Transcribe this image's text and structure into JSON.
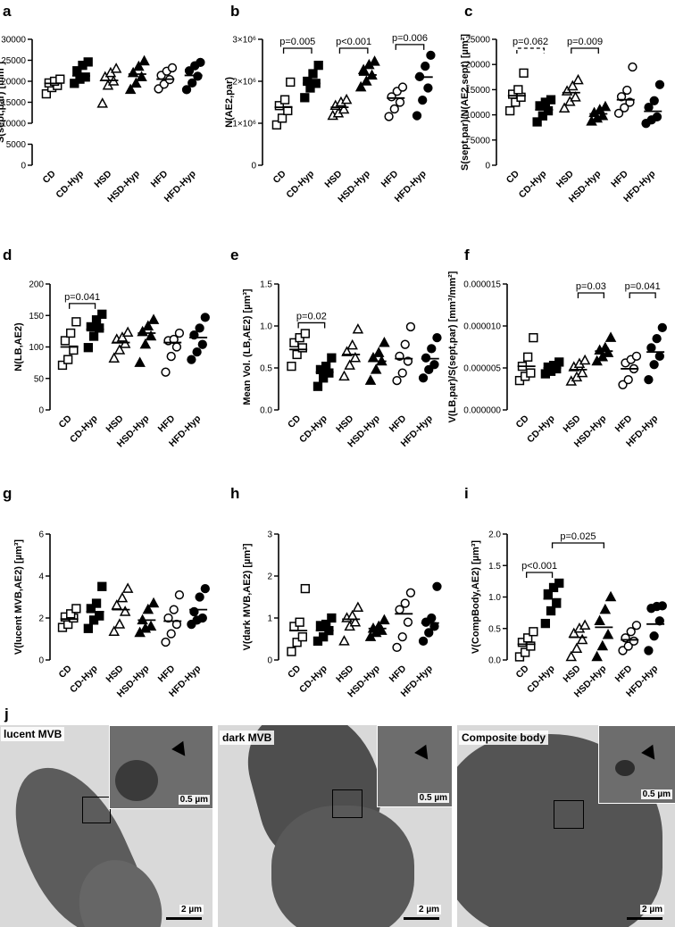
{
  "panel_letters": [
    "a",
    "b",
    "c",
    "d",
    "e",
    "f",
    "g",
    "h",
    "i",
    "j"
  ],
  "chart_data": [
    {
      "panel": "a",
      "type": "scatter",
      "ylabel": "S(sept,par) [mm²]",
      "categories": [
        "CD",
        "CD-Hyp",
        "HSD",
        "HSD-Hyp",
        "HFD",
        "HFD-Hyp"
      ],
      "yticks": [
        "0",
        "5000",
        "10000",
        "15000",
        "20000",
        "25000",
        "30000"
      ],
      "ylim": [
        0,
        30000
      ],
      "axis_break": [
        5000,
        10000
      ],
      "means": [
        19500,
        21300,
        20200,
        21700,
        20500,
        21400
      ],
      "values": [
        [
          17000,
          18500,
          19000,
          19600,
          20000,
          20500
        ],
        [
          19500,
          20500,
          21000,
          22500,
          23800,
          24600
        ],
        [
          14700,
          19000,
          20000,
          21000,
          22000,
          23000
        ],
        [
          18000,
          19500,
          21000,
          22000,
          23500,
          24800
        ],
        [
          18200,
          19300,
          20400,
          21400,
          22400,
          23200
        ],
        [
          18000,
          19600,
          21200,
          22500,
          23700,
          24500
        ]
      ],
      "comparisons": []
    },
    {
      "panel": "b",
      "type": "scatter",
      "ylabel": "N(AE2,par)",
      "categories": [
        "CD",
        "CD-Hyp",
        "HSD",
        "HSD-Hyp",
        "HFD",
        "HFD-Hyp"
      ],
      "yticks": [
        "0",
        "1×10⁶",
        "2×10⁶",
        "3×10⁶"
      ],
      "ylim": [
        0,
        3000000
      ],
      "means": [
        1380000,
        1950000,
        1380000,
        2150000,
        1600000,
        2100000
      ],
      "values": [
        [
          960000,
          1120000,
          1300000,
          1420000,
          1560000,
          1980000
        ],
        [
          1610000,
          1840000,
          1950000,
          2000000,
          2180000,
          2380000
        ],
        [
          1180000,
          1240000,
          1330000,
          1420000,
          1500000,
          1560000
        ],
        [
          1860000,
          2000000,
          2140000,
          2270000,
          2390000,
          2470000
        ],
        [
          1160000,
          1340000,
          1500000,
          1630000,
          1760000,
          1860000
        ],
        [
          1180000,
          1550000,
          1840000,
          2110000,
          2360000,
          2620000
        ]
      ],
      "comparisons": [
        {
          "from": 0,
          "to": 1,
          "label": "p=0.005",
          "dashed": false
        },
        {
          "from": 2,
          "to": 3,
          "label": "p<0.001",
          "dashed": false
        },
        {
          "from": 4,
          "to": 5,
          "label": "p=0.006",
          "dashed": false
        }
      ]
    },
    {
      "panel": "c",
      "type": "scatter",
      "ylabel": "S(sept,par)/N(AE2,sept) [µm²]",
      "categories": [
        "CD",
        "CD-Hyp",
        "HSD",
        "HSD-Hyp",
        "HFD",
        "HFD-Hyp"
      ],
      "yticks": [
        "0",
        "5000",
        "10000",
        "15000",
        "20000",
        "25000"
      ],
      "ylim": [
        0,
        25000
      ],
      "means": [
        13800,
        11000,
        14400,
        10200,
        13000,
        10700
      ],
      "values": [
        [
          10800,
          12500,
          13500,
          14100,
          15000,
          18300
        ],
        [
          8600,
          9800,
          10800,
          11800,
          12500,
          13000
        ],
        [
          11300,
          12600,
          13500,
          14700,
          15700,
          16900
        ],
        [
          8700,
          9300,
          9800,
          10400,
          11000,
          11600
        ],
        [
          10300,
          11400,
          12500,
          13600,
          14900,
          19500
        ],
        [
          8300,
          9000,
          9600,
          11500,
          12800,
          16000
        ]
      ],
      "comparisons": [
        {
          "from": 0,
          "to": 1,
          "label": "p=0.062",
          "dashed": true
        },
        {
          "from": 2,
          "to": 3,
          "label": "p=0.009",
          "dashed": false
        }
      ]
    },
    {
      "panel": "d",
      "type": "scatter",
      "ylabel": "N(LB,AE2)",
      "categories": [
        "CD",
        "CD-Hyp",
        "HSD",
        "HSD-Hyp",
        "HFD",
        "HFD-Hyp"
      ],
      "yticks": [
        "0",
        "50",
        "100",
        "150",
        "200"
      ],
      "ylim": [
        0,
        200
      ],
      "means": [
        100,
        128,
        107,
        122,
        107,
        115
      ],
      "values": [
        [
          71,
          80,
          95,
          110,
          122,
          140
        ],
        [
          99,
          117,
          130,
          132,
          143,
          152
        ],
        [
          82,
          95,
          105,
          112,
          115,
          123
        ],
        [
          75,
          104,
          117,
          124,
          133,
          143
        ],
        [
          60,
          85,
          100,
          110,
          112,
          122
        ],
        [
          80,
          92,
          104,
          119,
          130,
          147
        ]
      ],
      "comparisons": [
        {
          "from": 0,
          "to": 1,
          "label": "p=0.041",
          "dashed": false
        }
      ]
    },
    {
      "panel": "e",
      "type": "scatter",
      "ylabel": "Mean Vol. (LB,AE2) [µm³]",
      "categories": [
        "CD",
        "CD-Hyp",
        "HSD",
        "HSD-Hyp",
        "HFD",
        "HFD-Hyp"
      ],
      "yticks": [
        "0.0",
        "0.5",
        "1.0",
        "1.5"
      ],
      "ylim": [
        0,
        1.5
      ],
      "means": [
        0.72,
        0.45,
        0.66,
        0.58,
        0.61,
        0.61
      ],
      "values": [
        [
          0.52,
          0.66,
          0.74,
          0.8,
          0.86,
          0.91
        ],
        [
          0.28,
          0.38,
          0.44,
          0.48,
          0.52,
          0.62
        ],
        [
          0.4,
          0.53,
          0.62,
          0.69,
          0.77,
          0.96
        ],
        [
          0.35,
          0.48,
          0.58,
          0.62,
          0.68,
          0.8
        ],
        [
          0.35,
          0.44,
          0.58,
          0.64,
          0.78,
          0.99
        ],
        [
          0.38,
          0.48,
          0.54,
          0.62,
          0.73,
          0.86
        ]
      ],
      "comparisons": [
        {
          "from": 0,
          "to": 1,
          "label": "p=0.02",
          "dashed": false
        }
      ]
    },
    {
      "panel": "f",
      "type": "scatter",
      "ylabel": "V(LB,par)/S(sept,par) [mm³/mm²]",
      "categories": [
        "CD",
        "CD-Hyp",
        "HSD",
        "HSD-Hyp",
        "HFD",
        "HFD-Hyp"
      ],
      "yticks": [
        "0.000000",
        "0.000005",
        "0.000010",
        "0.000015"
      ],
      "ylim": [
        0,
        1.5e-05
      ],
      "means": [
        5.2e-06,
        5e-06,
        4.8e-06,
        7e-06,
        4.9e-06,
        6.9e-06
      ],
      "values": [
        [
          3.5e-06,
          4e-06,
          4.4e-06,
          5.2e-06,
          6.3e-06,
          8.6e-06
        ],
        [
          4.3e-06,
          4.6e-06,
          4.9e-06,
          5.1e-06,
          5.3e-06,
          5.7e-06
        ],
        [
          3.4e-06,
          3.9e-06,
          4.4e-06,
          5.1e-06,
          5.5e-06,
          5.9e-06
        ],
        [
          5.8e-06,
          6.3e-06,
          6.8e-06,
          7.1e-06,
          7.4e-06,
          8.6e-06
        ],
        [
          3e-06,
          3.6e-06,
          4.9e-06,
          5.6e-06,
          6e-06,
          6.4e-06
        ],
        [
          3.6e-06,
          5.4e-06,
          6.4e-06,
          7.4e-06,
          8.5e-06,
          9.8e-06
        ]
      ],
      "comparisons": [
        {
          "from": 2,
          "to": 3,
          "label": "p=0.03",
          "dashed": false
        },
        {
          "from": 4,
          "to": 5,
          "label": "p=0.041",
          "dashed": false
        }
      ]
    },
    {
      "panel": "g",
      "type": "scatter",
      "ylabel": "V(lucent MVB,AE2) [µm³]",
      "categories": [
        "CD",
        "CD-Hyp",
        "HSD",
        "HSD-Hyp",
        "HFD",
        "HFD-Hyp"
      ],
      "yticks": [
        "0",
        "2",
        "4",
        "6"
      ],
      "ylim": [
        0,
        6
      ],
      "means": [
        1.95,
        2.3,
        2.4,
        1.9,
        1.85,
        2.4
      ],
      "values": [
        [
          1.55,
          1.7,
          2.0,
          2.05,
          2.2,
          2.45
        ],
        [
          1.5,
          1.9,
          2.1,
          2.45,
          2.7,
          3.5
        ],
        [
          1.35,
          1.7,
          2.3,
          2.6,
          2.95,
          3.4
        ],
        [
          1.3,
          1.5,
          1.6,
          1.9,
          2.4,
          2.7
        ],
        [
          0.85,
          1.25,
          1.7,
          2.0,
          2.4,
          3.1
        ],
        [
          1.7,
          1.9,
          2.0,
          2.3,
          3.0,
          3.4
        ]
      ],
      "comparisons": []
    },
    {
      "panel": "h",
      "type": "scatter",
      "ylabel": "V(dark MVB,AE2) [µm³]",
      "categories": [
        "CD",
        "CD-Hyp",
        "HSD",
        "HSD-Hyp",
        "HFD",
        "HFD-Hyp"
      ],
      "yticks": [
        "0",
        "1",
        "2",
        "3"
      ],
      "ylim": [
        0,
        3
      ],
      "means": [
        0.7,
        0.7,
        0.97,
        0.75,
        1.1,
        0.88
      ],
      "values": [
        [
          0.2,
          0.42,
          0.55,
          0.8,
          0.9,
          1.7
        ],
        [
          0.45,
          0.55,
          0.7,
          0.82,
          0.85,
          1.0
        ],
        [
          0.45,
          0.8,
          0.9,
          1.0,
          1.05,
          1.25
        ],
        [
          0.55,
          0.65,
          0.7,
          0.75,
          0.8,
          0.95
        ],
        [
          0.3,
          0.55,
          0.9,
          1.2,
          1.35,
          1.6
        ],
        [
          0.45,
          0.65,
          0.8,
          0.9,
          1.0,
          1.75
        ]
      ],
      "comparisons": []
    },
    {
      "panel": "i",
      "type": "scatter",
      "ylabel": "V(CompBody,AE2) [µm³]",
      "categories": [
        "CD",
        "CD-Hyp",
        "HSD",
        "HSD-Hyp",
        "HFD",
        "HFD-Hyp"
      ],
      "yticks": [
        "0.0",
        "0.5",
        "1.0",
        "1.5",
        "2.0"
      ],
      "ylim": [
        0,
        2.0
      ],
      "means": [
        0.25,
        0.97,
        0.36,
        0.52,
        0.32,
        0.57
      ],
      "values": [
        [
          0.05,
          0.12,
          0.22,
          0.28,
          0.35,
          0.45
        ],
        [
          0.58,
          0.78,
          0.9,
          1.05,
          1.15,
          1.22
        ],
        [
          0.05,
          0.18,
          0.32,
          0.42,
          0.5,
          0.55
        ],
        [
          0.05,
          0.22,
          0.4,
          0.62,
          0.8,
          1.0
        ],
        [
          0.15,
          0.22,
          0.3,
          0.35,
          0.45,
          0.55
        ],
        [
          0.15,
          0.38,
          0.62,
          0.82,
          0.85,
          0.86
        ]
      ],
      "comparisons": [
        {
          "from": 0,
          "to": 1,
          "label": "p<0.001",
          "dashed": false
        },
        {
          "from": 1,
          "to": 3,
          "label": "p=0.025",
          "dashed": false
        }
      ]
    }
  ],
  "micrographs": [
    {
      "caption": "lucent MVB",
      "scale_main": "2 µm",
      "scale_inset": "0.5 µm"
    },
    {
      "caption": "dark MVB",
      "scale_main": "2 µm",
      "scale_inset": "0.5 µm"
    },
    {
      "caption": "Composite body",
      "scale_main": "2 µm",
      "scale_inset": "0.5 µm"
    }
  ],
  "colors": {
    "marker": "#000000",
    "tem_background": "#d9d9d9",
    "tem_cell": "#5a5a5a",
    "tem_inset": "#6d6d6d"
  }
}
